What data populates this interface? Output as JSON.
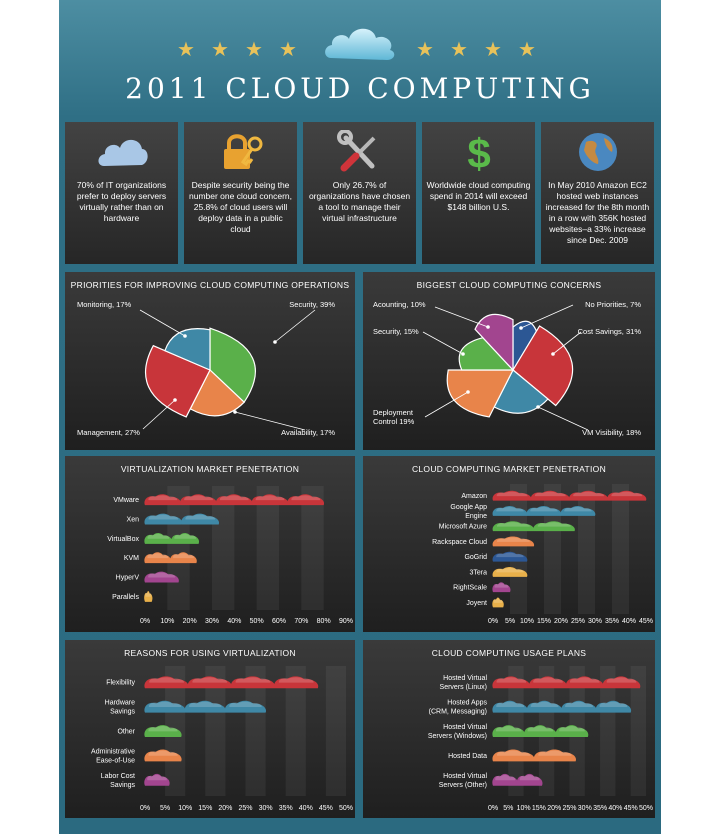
{
  "header": {
    "title": "2011 CLOUD COMPUTING",
    "star": "★"
  },
  "facts": [
    {
      "icon": "cloud-icon",
      "text": "70% of IT organizations prefer to deploy servers virtually rather than on hardware"
    },
    {
      "icon": "padlock-key-icon",
      "text": "Despite security being the number one cloud concern, 25.8% of cloud users will deploy data in a public cloud"
    },
    {
      "icon": "tools-icon",
      "text": "Only 26.7% of organizations have chosen a tool to manage their virtual infrastructure"
    },
    {
      "icon": "dollar-icon",
      "text": "Worldwide cloud computing spend in 2014 will exceed $148 billion U.S."
    },
    {
      "icon": "globe-icon",
      "text": "In May 2010 Amazon EC2 hosted web instances increased for the 8th month in a row with 356K hosted websites–a 33% increase since Dec. 2009"
    }
  ],
  "chart_data": [
    {
      "type": "pie",
      "title": "PRIORITIES FOR IMPROVING CLOUD COMPUTING OPERATIONS",
      "slices": [
        {
          "label": "Security, 39%",
          "value": 39,
          "color": "#5ab04a"
        },
        {
          "label": "Availability, 17%",
          "value": 17,
          "color": "#e8844a"
        },
        {
          "label": "Management, 27%",
          "value": 27,
          "color": "#c8353a"
        },
        {
          "label": "Monitoring, 17%",
          "value": 17,
          "color": "#3f88a6"
        }
      ]
    },
    {
      "type": "pie",
      "title": "BIGGEST CLOUD COMPUTING CONCERNS",
      "slices": [
        {
          "label": "No Priorities, 7%",
          "value": 7,
          "color": "#2c5794"
        },
        {
          "label": "Cost Savings, 31%",
          "value": 31,
          "color": "#c8353a"
        },
        {
          "label": "VM Visibility, 18%",
          "value": 18,
          "color": "#3f88a6"
        },
        {
          "label": "Deployment Control 19%",
          "value": 19,
          "color": "#e8844a"
        },
        {
          "label": "Security, 15%",
          "value": 15,
          "color": "#5ab04a"
        },
        {
          "label": "Acounting, 10%",
          "value": 10,
          "color": "#a2458f"
        }
      ]
    },
    {
      "type": "bar",
      "title": "VIRTUALIZATION MARKET PENETRATION",
      "categories": [
        "VMware",
        "Xen",
        "VirtualBox",
        "KVM",
        "HyperV",
        "Parallels"
      ],
      "values": [
        80,
        33,
        24,
        23,
        15,
        3
      ],
      "colors": [
        "#c8353a",
        "#3f88a6",
        "#5ab04a",
        "#e8844a",
        "#a2458f",
        "#e8b04a"
      ],
      "xticks": [
        "0%",
        "10%",
        "20%",
        "30%",
        "40%",
        "50%",
        "60%",
        "70%",
        "80%",
        "90%"
      ],
      "xlim": [
        0,
        90
      ]
    },
    {
      "type": "bar",
      "title": "CLOUD COMPUTING MARKET PENETRATION",
      "categories": [
        "Amazon",
        "Google App Engine",
        "Microsoft Azure",
        "Rackspace Cloud",
        "GoGrid",
        "3Tera",
        "RightScale",
        "Joyent"
      ],
      "values": [
        45,
        30,
        24,
        12,
        10,
        10,
        5,
        3
      ],
      "colors": [
        "#c8353a",
        "#3f88a6",
        "#5ab04a",
        "#e8844a",
        "#2c5794",
        "#e8b04a",
        "#a2458f",
        "#e8b04a"
      ],
      "xticks": [
        "0%",
        "5%",
        "10%",
        "15%",
        "20%",
        "25%",
        "30%",
        "35%",
        "40%",
        "45%"
      ],
      "xlim": [
        0,
        45
      ]
    },
    {
      "type": "bar",
      "title": "REASONS FOR USING VIRTUALIZATION",
      "categories": [
        "Flexibility",
        "Hardware Savings",
        "Other",
        "Administrative Ease-of-Use",
        "Labor Cost Savings"
      ],
      "values": [
        43,
        30,
        9,
        9,
        6
      ],
      "colors": [
        "#c8353a",
        "#3f88a6",
        "#5ab04a",
        "#e8844a",
        "#a2458f"
      ],
      "xticks": [
        "0%",
        "5%",
        "10%",
        "15%",
        "20%",
        "25%",
        "30%",
        "35%",
        "40%",
        "45%",
        "50%"
      ],
      "xlim": [
        0,
        50
      ]
    },
    {
      "type": "bar",
      "title": "CLOUD COMPUTING USAGE PLANS",
      "categories": [
        "Hosted Virtual Servers (Linux)",
        "Hosted Apps (CRM, Messaging)",
        "Hosted Virtual Servers (Windows)",
        "Hosted Data",
        "Hosted Virtual Servers (Other)"
      ],
      "values": [
        48,
        45,
        31,
        27,
        16
      ],
      "colors": [
        "#c8353a",
        "#3f88a6",
        "#5ab04a",
        "#e8844a",
        "#a2458f"
      ],
      "xticks": [
        "0%",
        "5%",
        "10%",
        "15%",
        "20%",
        "25%",
        "30%",
        "35%",
        "40%",
        "45%",
        "50%"
      ],
      "xlim": [
        0,
        50
      ]
    }
  ]
}
